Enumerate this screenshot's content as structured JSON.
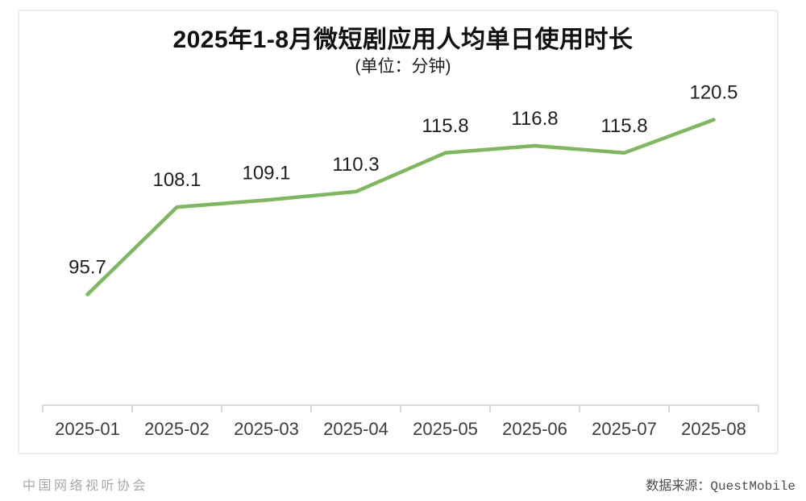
{
  "chart_data": {
    "type": "line",
    "title": "2025年1-8月微短剧应用人均单日使用时长",
    "subtitle": "(单位：分钟)",
    "categories": [
      "2025-01",
      "2025-02",
      "2025-03",
      "2025-04",
      "2025-05",
      "2025-06",
      "2025-07",
      "2025-08"
    ],
    "values": [
      95.7,
      108.1,
      109.1,
      110.3,
      115.8,
      116.8,
      115.8,
      120.5
    ],
    "xlabel": "",
    "ylabel": "",
    "ylim": [
      80,
      128
    ],
    "grid": false,
    "legend": "none",
    "y_axis_visible": false,
    "colors": {
      "line": "#7cb85c",
      "value_label": "#1f1f1f",
      "axis": "#d9d9d9",
      "tick_label": "#3d3d3d"
    }
  },
  "footer": {
    "left": "中国网络视听协会",
    "right": "数据来源：QuestMobile"
  }
}
